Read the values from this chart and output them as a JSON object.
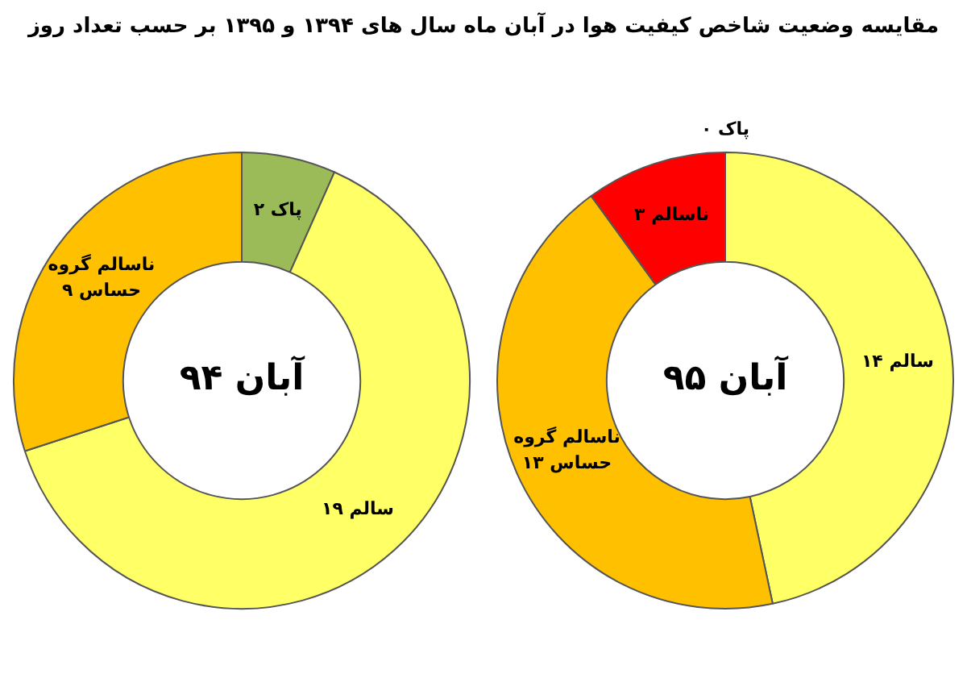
{
  "chart_data": [
    {
      "type": "donut",
      "title": "مقایسه وضعیت شاخص کیفیت هوا در آبان ماه سال های ۱۳۹۴ و ۱۳۹۵ بر حسب تعداد روز",
      "annotations": [
        "آبان ۹۴"
      ],
      "categories": [
        "پاک",
        "سالم",
        "ناسالم گروه حساس"
      ],
      "values": [
        2,
        19,
        9
      ],
      "value_labels": [
        "۲",
        "۱۹",
        "۹"
      ],
      "colors": [
        "#9bbb59",
        "#ffff66",
        "#ffc000"
      ],
      "legend": false
    },
    {
      "type": "donut",
      "annotations": [
        "آبان ۹۵"
      ],
      "categories": [
        "پاک",
        "سالم",
        "ناسالم گروه حساس",
        "ناسالم"
      ],
      "values": [
        0,
        14,
        13,
        3
      ],
      "value_labels": [
        "۰",
        "۱۴",
        "۱۳",
        "۳"
      ],
      "colors": [
        "#9bbb59",
        "#ffff66",
        "#ffc000",
        "#ff0000"
      ],
      "legend": false
    }
  ]
}
